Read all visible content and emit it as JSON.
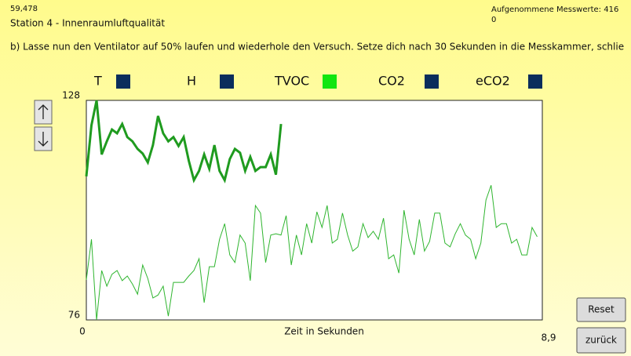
{
  "header": {
    "counter": "59,478",
    "station": "Station 4 - Innenraumluftqualität",
    "samples": "Aufgenommene Messwerte: 416",
    "status": "0"
  },
  "instruction": "b) Lasse nun den Ventilator auf 50% laufen und wiederhole den Versuch. Setze dich nach 30 Sekunden in die Messkammer, schlie",
  "buttons": {
    "reset": "Reset",
    "back": "zurück"
  },
  "chart_data": {
    "type": "line",
    "legend": [
      {
        "name": "T",
        "color": "#0a2d5c"
      },
      {
        "name": "H",
        "color": "#0a2d5c"
      },
      {
        "name": "TVOC",
        "color": "#11e611"
      },
      {
        "name": "CO2",
        "color": "#0a2d5c"
      },
      {
        "name": "eCO2",
        "color": "#0a2d5c"
      }
    ],
    "xlabel": "Zeit in Sekunden",
    "xlim": [
      0,
      8.9
    ],
    "xticks": [
      0,
      {
        "value": 8.9,
        "label": "8,9"
      }
    ],
    "ylim": [
      76,
      128
    ],
    "yticks": [
      76,
      128
    ],
    "grid": false,
    "series": [
      {
        "color": "#1f9b1f",
        "x": [
          0,
          0.1,
          0.2,
          0.3,
          0.4,
          0.5,
          0.6,
          0.7,
          0.8,
          0.9,
          1,
          1.1,
          1.2,
          1.3,
          1.4,
          1.5,
          1.6,
          1.7,
          1.8,
          1.9,
          2,
          2.1,
          2.2,
          2.3,
          2.4,
          2.5,
          2.6,
          2.7,
          2.8,
          2.9,
          3,
          3.1,
          3.2,
          3.3,
          3.4,
          3.5,
          3.6,
          3.7,
          3.8
        ],
        "values": [
          110.0,
          122.1,
          128,
          115.2,
          118.3,
          121.1,
          120.2,
          122.4,
          119.3,
          118.3,
          116.5,
          115.4,
          113.3,
          117.4,
          124.3,
          120.2,
          118.3,
          119.3,
          117.2,
          119.3,
          113.7,
          109.1,
          111.3,
          115.2,
          111.8,
          117.4,
          111.3,
          109.1,
          114.1,
          116.5,
          115.6,
          111.3,
          114.6,
          111.3,
          112.2,
          112.2,
          115.2,
          110.4,
          122.4
        ]
      },
      {
        "color": "#2fb52f",
        "x": [
          0,
          0.1,
          0.2,
          0.3,
          0.4,
          0.5,
          0.6,
          0.7,
          0.8,
          0.9,
          1,
          1.1,
          1.2,
          1.3,
          1.4,
          1.5,
          1.6,
          1.7,
          1.8,
          1.9,
          2,
          2.1,
          2.2,
          2.3,
          2.4,
          2.5,
          2.6,
          2.7,
          2.8,
          2.9,
          3,
          3.1,
          3.2,
          3.3,
          3.4,
          3.5,
          3.6,
          3.7,
          3.8,
          3.9,
          4,
          4.1,
          4.2,
          4.3,
          4.4,
          4.5,
          4.6,
          4.7,
          4.8,
          4.9,
          5,
          5.1,
          5.2,
          5.3,
          5.4,
          5.5,
          5.6,
          5.7,
          5.8,
          5.9,
          6,
          6.1,
          6.2,
          6.3,
          6.4,
          6.5,
          6.6,
          6.7,
          6.8,
          6.9,
          7,
          7.1,
          7.2,
          7.3,
          7.4,
          7.5,
          7.6,
          7.7,
          7.8,
          7.9,
          8,
          8.1,
          8.2,
          8.3,
          8.4,
          8.5,
          8.6,
          8.7,
          8.8
        ],
        "values": [
          85.5,
          95.1,
          76,
          87.7,
          84.0,
          86.8,
          87.7,
          85.3,
          86.4,
          84.5,
          82.1,
          89.0,
          85.8,
          81.2,
          81.9,
          84.0,
          76.9,
          84.9,
          84.9,
          84.9,
          86.4,
          87.7,
          90.5,
          80.1,
          88.6,
          88.6,
          95.1,
          98.8,
          91.4,
          89.6,
          96.1,
          94.2,
          85.3,
          103.1,
          101.3,
          89.6,
          96.1,
          96.4,
          96.1,
          100.7,
          89.0,
          96.1,
          91.4,
          98.8,
          94.2,
          101.6,
          97.9,
          103.1,
          94.2,
          95.1,
          101.3,
          96.1,
          92.3,
          93.3,
          98.8,
          95.5,
          97.0,
          95.1,
          100.1,
          90.5,
          91.4,
          87.1,
          102.0,
          95.1,
          91.4,
          99.8,
          92.3,
          94.6,
          101.3,
          101.3,
          94.2,
          93.3,
          96.4,
          98.8,
          96.1,
          95.1,
          90.5,
          94.2,
          104.4,
          107.9,
          97.9,
          98.8,
          98.8,
          94.2,
          95.1,
          91.4,
          91.4,
          97.9,
          95.7
        ]
      }
    ]
  }
}
